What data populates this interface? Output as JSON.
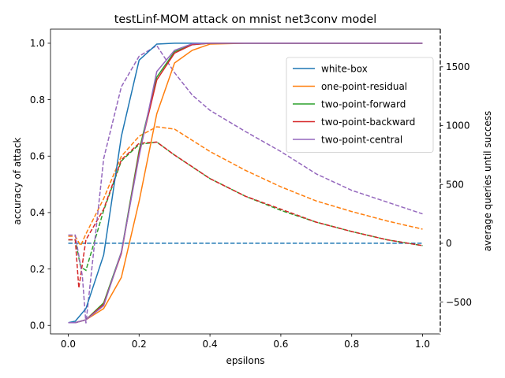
{
  "chart_data": {
    "type": "line",
    "title": "testLinf-MOM attack on mnist net3conv model",
    "xlabel": "epsilons",
    "ylabel": "accuracy of attack",
    "ylabel_right": "average queries until success",
    "xlim": [
      -0.05,
      1.05
    ],
    "ylim": [
      -0.03,
      1.05
    ],
    "ylim_right": [
      -770,
      1820
    ],
    "x_ticks": [
      0.0,
      0.2,
      0.4,
      0.6,
      0.8,
      1.0
    ],
    "x_tick_labels": [
      "0.0",
      "0.2",
      "0.4",
      "0.6",
      "0.8",
      "1.0"
    ],
    "y_ticks": [
      0.0,
      0.2,
      0.4,
      0.6,
      0.8,
      1.0
    ],
    "y_tick_labels": [
      "0.0",
      "0.2",
      "0.4",
      "0.6",
      "0.8",
      "1.0"
    ],
    "y_right_ticks": [
      -500,
      0,
      500,
      1000,
      1500
    ],
    "y_right_tick_labels": [
      "−500",
      "0",
      "500",
      "1000",
      "1500"
    ],
    "grid": false,
    "legend_position": "upper-right",
    "series": [
      {
        "name": "white-box",
        "color": "#1f77b4",
        "accuracy": {
          "x": [
            0.0,
            0.02,
            0.05,
            0.1,
            0.15,
            0.2,
            0.25,
            0.3,
            0.35,
            0.4,
            0.5,
            0.6,
            0.7,
            0.8,
            0.9,
            1.0
          ],
          "y": [
            0.01,
            0.015,
            0.06,
            0.25,
            0.67,
            0.94,
            0.997,
            1.0,
            1.0,
            1.0,
            1.0,
            1.0,
            1.0,
            1.0,
            1.0,
            1.0
          ]
        },
        "queries": {
          "x": [
            0.0,
            0.02,
            0.05,
            0.1,
            0.2,
            0.4,
            0.6,
            0.8,
            1.0
          ],
          "y": [
            0,
            0,
            0,
            0,
            0,
            0,
            0,
            0,
            0
          ]
        }
      },
      {
        "name": "one-point-residual",
        "color": "#ff7f0e",
        "accuracy": {
          "x": [
            0.0,
            0.02,
            0.05,
            0.1,
            0.15,
            0.2,
            0.25,
            0.3,
            0.35,
            0.4,
            0.5,
            0.6,
            0.7,
            0.8,
            0.9,
            1.0
          ],
          "y": [
            0.01,
            0.01,
            0.02,
            0.06,
            0.17,
            0.44,
            0.75,
            0.93,
            0.975,
            0.997,
            1.0,
            1.0,
            1.0,
            1.0,
            1.0,
            1.0
          ]
        },
        "queries": {
          "x": [
            0.0,
            0.02,
            0.035,
            0.05,
            0.1,
            0.15,
            0.2,
            0.25,
            0.3,
            0.4,
            0.5,
            0.6,
            0.7,
            0.8,
            0.9,
            1.0
          ],
          "y": [
            60,
            60,
            -20,
            80,
            380,
            740,
            910,
            990,
            970,
            780,
            620,
            480,
            360,
            270,
            190,
            120
          ]
        }
      },
      {
        "name": "two-point-forward",
        "color": "#2ca02c",
        "accuracy": {
          "x": [
            0.0,
            0.02,
            0.05,
            0.1,
            0.15,
            0.2,
            0.25,
            0.3,
            0.35,
            0.4,
            0.5,
            0.6,
            0.7,
            0.8,
            0.9,
            1.0
          ],
          "y": [
            0.01,
            0.01,
            0.02,
            0.08,
            0.26,
            0.62,
            0.88,
            0.97,
            0.995,
            1.0,
            1.0,
            1.0,
            1.0,
            1.0,
            1.0,
            1.0
          ]
        },
        "queries": {
          "x": [
            0.0,
            0.02,
            0.035,
            0.05,
            0.1,
            0.15,
            0.2,
            0.25,
            0.3,
            0.4,
            0.5,
            0.6,
            0.7,
            0.8,
            0.9,
            1.0
          ],
          "y": [
            30,
            30,
            -200,
            -230,
            280,
            700,
            840,
            860,
            750,
            550,
            400,
            280,
            180,
            100,
            30,
            -20
          ]
        }
      },
      {
        "name": "two-point-backward",
        "color": "#d62728",
        "accuracy": {
          "x": [
            0.0,
            0.02,
            0.05,
            0.1,
            0.15,
            0.2,
            0.25,
            0.3,
            0.35,
            0.4,
            0.5,
            0.6,
            0.7,
            0.8,
            0.9,
            1.0
          ],
          "y": [
            0.01,
            0.01,
            0.02,
            0.075,
            0.255,
            0.61,
            0.87,
            0.965,
            0.995,
            1.0,
            1.0,
            1.0,
            1.0,
            1.0,
            1.0,
            1.0
          ]
        },
        "queries": {
          "x": [
            0.0,
            0.02,
            0.03,
            0.05,
            0.1,
            0.15,
            0.2,
            0.25,
            0.3,
            0.4,
            0.5,
            0.6,
            0.7,
            0.8,
            0.9,
            1.0
          ],
          "y": [
            30,
            30,
            -380,
            30,
            290,
            710,
            850,
            860,
            750,
            550,
            400,
            290,
            180,
            100,
            30,
            -20
          ]
        }
      },
      {
        "name": "two-point-central",
        "color": "#9467bd",
        "accuracy": {
          "x": [
            0.0,
            0.02,
            0.05,
            0.1,
            0.15,
            0.2,
            0.25,
            0.3,
            0.35,
            0.4,
            0.5,
            0.6,
            0.7,
            0.8,
            0.9,
            1.0
          ],
          "y": [
            0.01,
            0.01,
            0.02,
            0.07,
            0.26,
            0.6,
            0.9,
            0.975,
            0.998,
            1.0,
            1.0,
            1.0,
            1.0,
            1.0,
            1.0,
            1.0
          ]
        },
        "queries": {
          "x": [
            0.0,
            0.02,
            0.04,
            0.05,
            0.1,
            0.15,
            0.2,
            0.25,
            0.3,
            0.35,
            0.4,
            0.5,
            0.6,
            0.7,
            0.8,
            0.9,
            1.0
          ],
          "y": [
            70,
            70,
            -280,
            -680,
            720,
            1330,
            1590,
            1680,
            1450,
            1260,
            1130,
            950,
            780,
            590,
            450,
            350,
            250
          ]
        }
      }
    ]
  }
}
